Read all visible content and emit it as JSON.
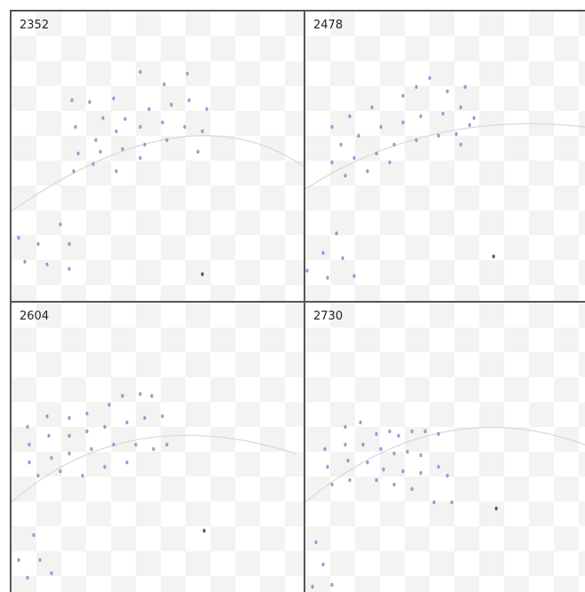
{
  "panels": [
    {
      "label": "2352"
    },
    {
      "label": "2478"
    },
    {
      "label": "2604"
    },
    {
      "label": "2730"
    }
  ]
}
